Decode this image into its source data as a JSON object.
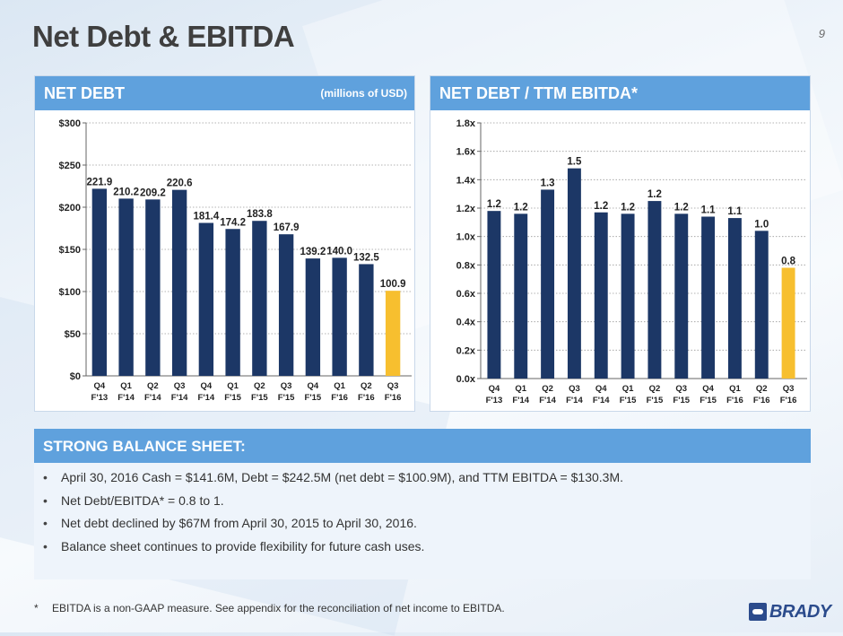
{
  "title": "Net Debt & EBITDA",
  "page_number": "9",
  "net_debt_panel": {
    "title": "NET DEBT",
    "subtitle": "(millions of USD)"
  },
  "ratio_panel": {
    "title": "NET DEBT / TTM EBITDA*"
  },
  "chart_data": [
    {
      "type": "bar",
      "title": "NET DEBT",
      "subtitle": "(millions of USD)",
      "categories": [
        [
          "Q4",
          "F'13"
        ],
        [
          "Q1",
          "F'14"
        ],
        [
          "Q2",
          "F'14"
        ],
        [
          "Q3",
          "F'14"
        ],
        [
          "Q4",
          "F'14"
        ],
        [
          "Q1",
          "F'15"
        ],
        [
          "Q2",
          "F'15"
        ],
        [
          "Q3",
          "F'15"
        ],
        [
          "Q4",
          "F'15"
        ],
        [
          "Q1",
          "F'16"
        ],
        [
          "Q2",
          "F'16"
        ],
        [
          "Q3",
          "F'16"
        ]
      ],
      "values": [
        221.9,
        210.2,
        209.2,
        220.6,
        181.4,
        174.2,
        183.8,
        167.9,
        139.2,
        140.0,
        132.5,
        100.9
      ],
      "value_labels": [
        "221.9",
        "210.2",
        "209.2",
        "220.6",
        "181.4",
        "174.2",
        "183.8",
        "167.9",
        "139.2",
        "140.0",
        "132.5",
        "100.9"
      ],
      "ylim": [
        0,
        300
      ],
      "yticks": [
        0,
        50,
        100,
        150,
        200,
        250,
        300
      ],
      "ytick_labels": [
        "$0",
        "$50",
        "$100",
        "$150",
        "$200",
        "$250",
        "$300"
      ],
      "grid": true,
      "bar_color": "#1c3766",
      "highlight_color": "#f7bf2f",
      "highlight_index": 11
    },
    {
      "type": "bar",
      "title": "NET DEBT / TTM EBITDA*",
      "categories": [
        [
          "Q4",
          "F'13"
        ],
        [
          "Q1",
          "F'14"
        ],
        [
          "Q2",
          "F'14"
        ],
        [
          "Q3",
          "F'14"
        ],
        [
          "Q4",
          "F'14"
        ],
        [
          "Q1",
          "F'15"
        ],
        [
          "Q2",
          "F'15"
        ],
        [
          "Q3",
          "F'15"
        ],
        [
          "Q4",
          "F'15"
        ],
        [
          "Q1",
          "F'16"
        ],
        [
          "Q2",
          "F'16"
        ],
        [
          "Q3",
          "F'16"
        ]
      ],
      "values": [
        1.18,
        1.16,
        1.33,
        1.48,
        1.17,
        1.16,
        1.25,
        1.16,
        1.14,
        1.13,
        1.04,
        0.78
      ],
      "value_labels": [
        "1.2",
        "1.2",
        "1.3",
        "1.5",
        "1.2",
        "1.2",
        "1.2",
        "1.2",
        "1.1",
        "1.1",
        "1.0",
        "0.8"
      ],
      "ylim": [
        0,
        1.8
      ],
      "yticks": [
        0,
        0.2,
        0.4,
        0.6,
        0.8,
        1.0,
        1.2,
        1.4,
        1.6,
        1.8
      ],
      "ytick_labels": [
        "0.0x",
        "0.2x",
        "0.4x",
        "0.6x",
        "0.8x",
        "1.0x",
        "1.2x",
        "1.4x",
        "1.6x",
        "1.8x"
      ],
      "grid": true,
      "bar_color": "#1c3766",
      "highlight_color": "#f7bf2f",
      "highlight_index": 11
    }
  ],
  "balance_sheet": {
    "title": "STRONG BALANCE SHEET:",
    "bullets": [
      "April 30, 2016 Cash = $141.6M, Debt = $242.5M (net debt = $100.9M), and TTM EBITDA = $130.3M.",
      "Net Debt/EBITDA* = 0.8 to 1.",
      "Net debt declined by $67M from April 30, 2015 to April 30, 2016.",
      "Balance sheet continues to provide flexibility for future cash uses."
    ]
  },
  "footnote": {
    "marker": "*",
    "text": "EBITDA is a non-GAAP measure.  See appendix for the reconciliation of net income to EBITDA."
  },
  "logo_text": "BRADY"
}
